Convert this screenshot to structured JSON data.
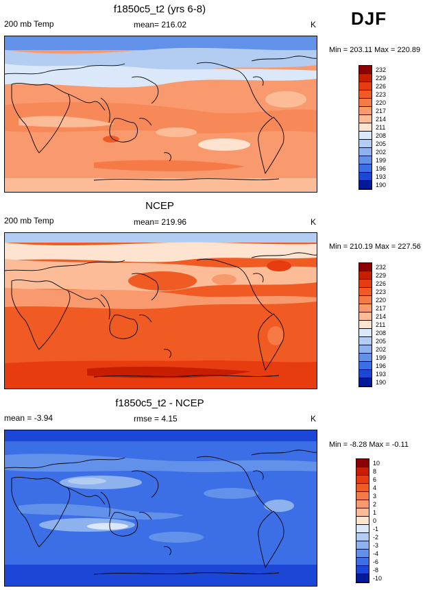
{
  "season": "DJF",
  "units": "K",
  "panels": [
    {
      "title": "f1850c5_t2 (yrs 6-8)",
      "left_label": "200 mb Temp",
      "center_label": "mean= 216.02",
      "right_label": "K",
      "stats": "Min = 203.11 Max = 220.89",
      "levels": [
        "232",
        "229",
        "226",
        "223",
        "220",
        "217",
        "214",
        "211",
        "208",
        "205",
        "202",
        "199",
        "196",
        "193",
        "190"
      ],
      "colors": [
        "#8b0000",
        "#c81e00",
        "#e63c0f",
        "#f05a23",
        "#f57a46",
        "#f99a6e",
        "#fcbc98",
        "#fde3d0",
        "#dbe8f9",
        "#b3cdf2",
        "#8eb2ee",
        "#6291ea",
        "#3c6fe6",
        "#1c46d6",
        "#001a9a"
      ]
    },
    {
      "title": "NCEP",
      "left_label": "200 mb Temp",
      "center_label": "mean= 219.96",
      "right_label": "K",
      "stats": "Min = 210.19 Max = 227.56",
      "levels": [
        "232",
        "229",
        "226",
        "223",
        "220",
        "217",
        "214",
        "211",
        "208",
        "205",
        "202",
        "199",
        "196",
        "193",
        "190"
      ],
      "colors": [
        "#8b0000",
        "#c81e00",
        "#e63c0f",
        "#f05a23",
        "#f57a46",
        "#f99a6e",
        "#fcbc98",
        "#fde3d0",
        "#dbe8f9",
        "#b3cdf2",
        "#8eb2ee",
        "#6291ea",
        "#3c6fe6",
        "#1c46d6",
        "#001a9a"
      ]
    },
    {
      "title": "f1850c5_t2 - NCEP",
      "left_label": "mean =  -3.94",
      "center_label": "rmse =   4.15",
      "right_label": "K",
      "stats": "Min =  -8.28 Max =  -0.11",
      "levels": [
        "10",
        "8",
        "6",
        "4",
        "3",
        "2",
        "1",
        "0",
        "-1",
        "-2",
        "-3",
        "-4",
        "-6",
        "-8",
        "-10"
      ],
      "colors": [
        "#8b0000",
        "#c81e00",
        "#e63c0f",
        "#f05a23",
        "#f57a46",
        "#f99a6e",
        "#fcbc98",
        "#fde3d0",
        "#dbe8f9",
        "#b3cdf2",
        "#8eb2ee",
        "#6291ea",
        "#3c6fe6",
        "#1c46d6",
        "#001a9a"
      ]
    }
  ]
}
